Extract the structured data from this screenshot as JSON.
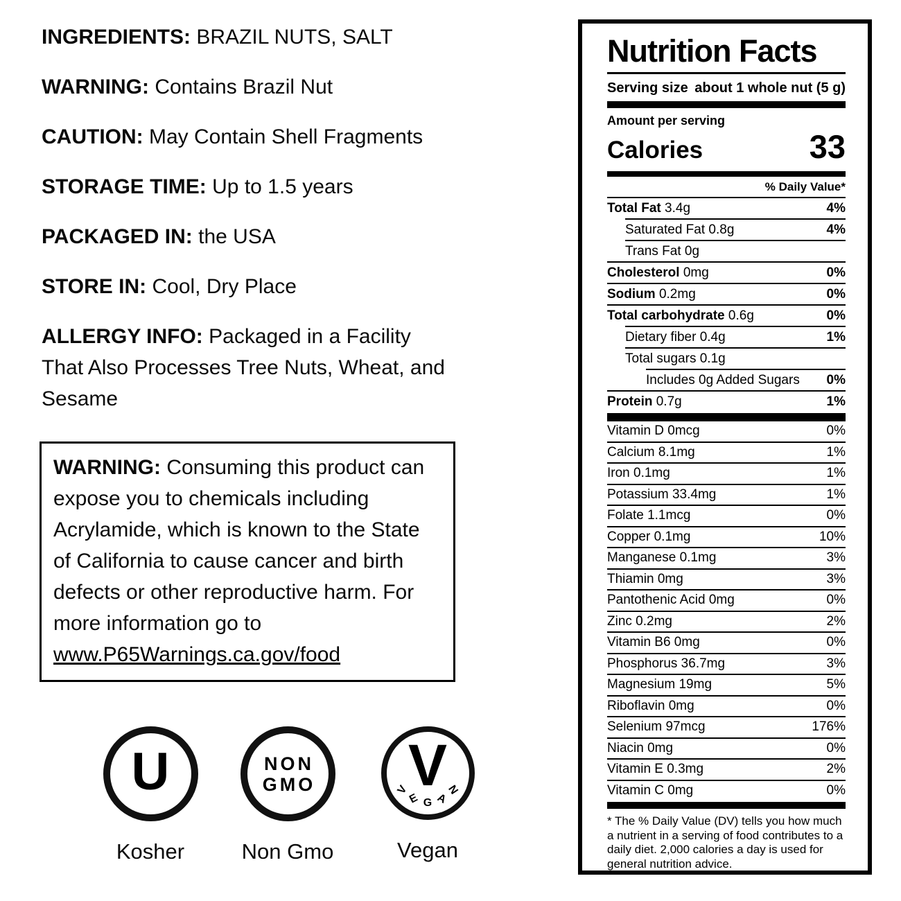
{
  "colors": {
    "text": "#000000",
    "background": "#ffffff",
    "rule": "#000000"
  },
  "left_panel": {
    "info_lines": [
      {
        "label": "INGREDIENTS:",
        "text": "BRAZIL NUTS, SALT"
      },
      {
        "label": "WARNING:",
        "text": "Contains Brazil Nut"
      },
      {
        "label": "CAUTION:",
        "text": "May Contain Shell Fragments"
      },
      {
        "label": "STORAGE TIME:",
        "text": "Up to 1.5 years"
      },
      {
        "label": "PACKAGED IN:",
        "text": "the USA"
      },
      {
        "label": "STORE IN:",
        "text": "Cool, Dry Place"
      },
      {
        "label": "ALLERGY INFO:",
        "text": "Packaged in a Facility That Also Processes Tree Nuts, Wheat, and Sesame"
      }
    ],
    "warning_box": {
      "label": "WARNING:",
      "text": "Consuming this product can expose you to chemicals including Acrylamide, which is known to the State of California to cause cancer and birth defects or other reproductive harm. For more information go to",
      "link": "www.P65Warnings.ca.gov/food"
    },
    "badges": [
      {
        "type": "kosher",
        "symbol": "U",
        "label": "Kosher"
      },
      {
        "type": "nongmo",
        "line1": "NON",
        "line2": "GMO",
        "label": "Non Gmo"
      },
      {
        "type": "vegan",
        "symbol": "V",
        "arc": [
          "V",
          "E",
          "G",
          "A",
          "N"
        ],
        "label": "Vegan"
      }
    ]
  },
  "nutrition": {
    "title": "Nutrition Facts",
    "serving_size_label": "Serving size",
    "serving_size_value": "about 1 whole nut (5 g)",
    "amount_per_serving": "Amount per serving",
    "calories_label": "Calories",
    "calories_value": "33",
    "daily_value_header": "% Daily Value*",
    "macro_rows": [
      {
        "bold": "Total Fat",
        "rest": "3.4g",
        "pct": "4%",
        "indent": 0,
        "sep_above": -1
      },
      {
        "bold": "",
        "rest": "Saturated Fat 0.8g",
        "pct": "4%",
        "indent": 1,
        "sep_above": 1
      },
      {
        "bold": "",
        "rest": "Trans Fat 0g",
        "pct": "",
        "indent": 1,
        "sep_above": 1
      },
      {
        "bold": "Cholesterol",
        "rest": "0mg",
        "pct": "0%",
        "indent": 0,
        "sep_above": 0
      },
      {
        "bold": "Sodium",
        "rest": "0.2mg",
        "pct": "0%",
        "indent": 0,
        "sep_above": 0
      },
      {
        "bold": "Total carbohydrate",
        "rest": "0.6g",
        "pct": "0%",
        "indent": 0,
        "sep_above": 0
      },
      {
        "bold": "",
        "rest": "Dietary fiber 0.4g",
        "pct": "1%",
        "indent": 1,
        "sep_above": 1
      },
      {
        "bold": "",
        "rest": "Total sugars 0.1g",
        "pct": "",
        "indent": 1,
        "sep_above": 1
      },
      {
        "bold": "",
        "rest": "Includes 0g Added Sugars",
        "pct": "0%",
        "indent": 2,
        "sep_above": 2
      },
      {
        "bold": "Protein",
        "rest": "0.7g",
        "pct": "1%",
        "indent": 0,
        "sep_above": 0
      }
    ],
    "micro_rows": [
      {
        "text": "Vitamin D 0mcg",
        "pct": "0%"
      },
      {
        "text": "Calcium 8.1mg",
        "pct": "1%"
      },
      {
        "text": "Iron 0.1mg",
        "pct": "1%"
      },
      {
        "text": "Potassium 33.4mg",
        "pct": "1%"
      },
      {
        "text": "Folate 1.1mcg",
        "pct": "0%"
      },
      {
        "text": "Copper 0.1mg",
        "pct": "10%"
      },
      {
        "text": "Manganese 0.1mg",
        "pct": "3%"
      },
      {
        "text": "Thiamin 0mg",
        "pct": "3%"
      },
      {
        "text": "Pantothenic Acid 0mg",
        "pct": "0%"
      },
      {
        "text": "Zinc 0.2mg",
        "pct": "2%"
      },
      {
        "text": "Vitamin B6 0mg",
        "pct": "0%"
      },
      {
        "text": "Phosphorus 36.7mg",
        "pct": "3%"
      },
      {
        "text": "Magnesium 19mg",
        "pct": "5%"
      },
      {
        "text": "Riboflavin 0mg",
        "pct": "0%"
      },
      {
        "text": "Selenium 97mcg",
        "pct": "176%"
      },
      {
        "text": "Niacin 0mg",
        "pct": "0%"
      },
      {
        "text": "Vitamin E 0.3mg",
        "pct": "2%"
      },
      {
        "text": "Vitamin C 0mg",
        "pct": "0%"
      }
    ],
    "footnote": "* The % Daily Value (DV) tells you how much a nutrient in a serving of food contributes to a daily diet. 2,000 calories a day is used for general nutrition advice."
  }
}
